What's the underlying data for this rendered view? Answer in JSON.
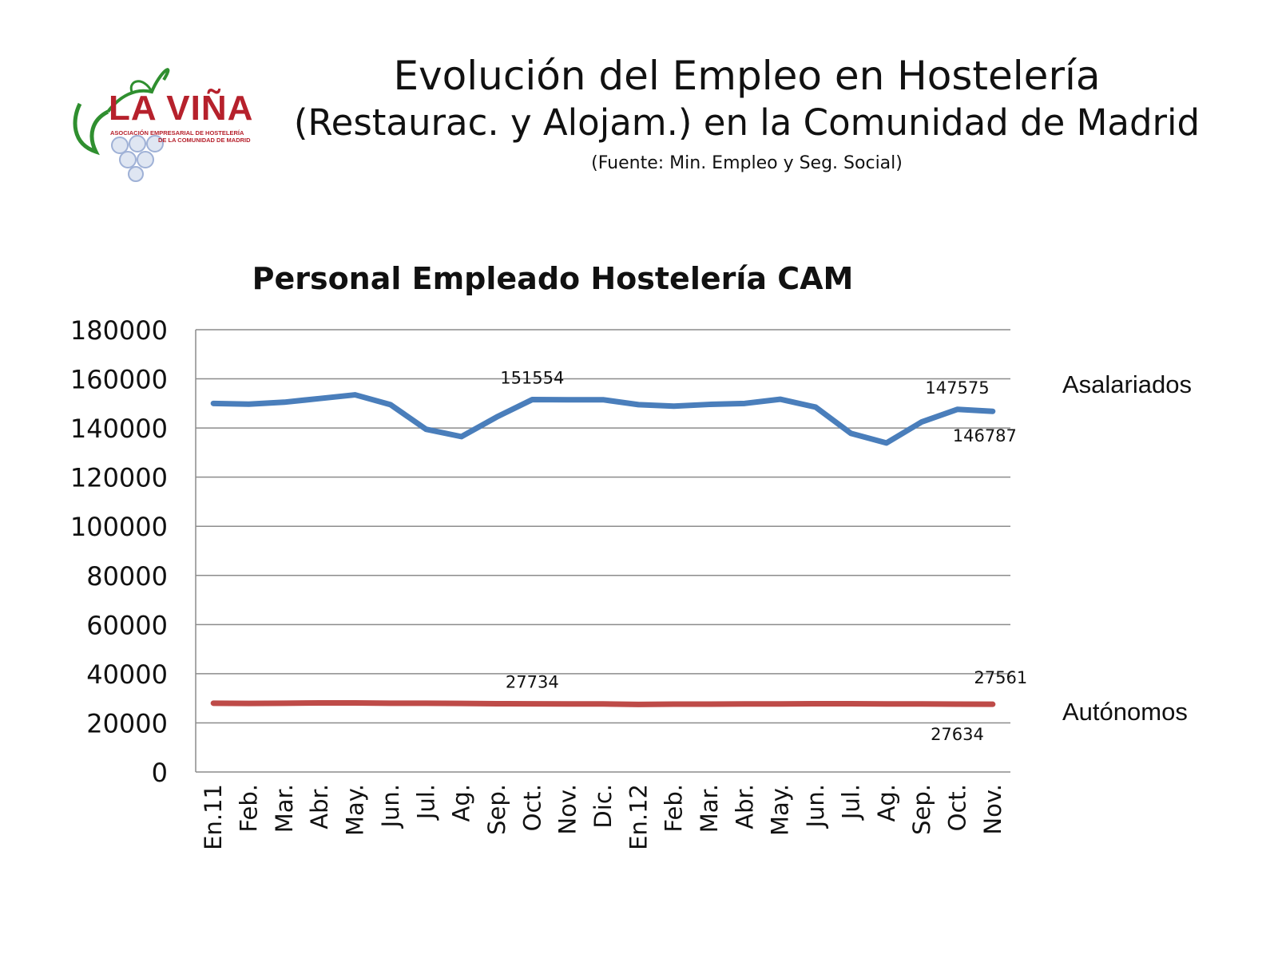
{
  "logo": {
    "name": "LA VIÑA",
    "line1": "ASOCIACIÓN EMPRESARIAL DE HOSTELERÍA",
    "line2": "DE LA COMUNIDAD DE MADRID"
  },
  "header": {
    "title": "Evolución del Empleo en Hostelería",
    "subtitle": "(Restaurac. y Alojam.) en la Comunidad de Madrid",
    "source": "(Fuente: Min. Empleo y Seg. Social)"
  },
  "colors": {
    "asalariados": "#4a7ebb",
    "autonomos": "#be4b48",
    "grid": "#8c8c8c"
  },
  "chart_data": {
    "type": "line",
    "title": "Personal Empleado Hostelería CAM",
    "xlabel": "",
    "ylabel": "",
    "ylim": [
      0,
      180000
    ],
    "yticks": [
      "0",
      "20000",
      "40000",
      "60000",
      "80000",
      "100000",
      "120000",
      "140000",
      "160000",
      "180000"
    ],
    "grid": true,
    "legend": "right",
    "categories": [
      "En.11",
      "Feb.",
      "Mar.",
      "Abr.",
      "May.",
      "Jun.",
      "Jul.",
      "Ag.",
      "Sep.",
      "Oct.",
      "Nov.",
      "Dic.",
      "En.12",
      "Feb.",
      "Mar.",
      "Abr.",
      "May.",
      "Jun.",
      "Jul.",
      "Ag.",
      "Sep.",
      "Oct.",
      "Nov."
    ],
    "series": [
      {
        "name": "Asalariados",
        "values": [
          150000,
          149700,
          150500,
          152000,
          153500,
          149500,
          139500,
          136500,
          144500,
          151554,
          151500,
          151500,
          149500,
          148900,
          149600,
          150000,
          151700,
          148500,
          137800,
          133900,
          142500,
          147575,
          146787
        ],
        "labels": [
          {
            "index": 9,
            "text": "151554"
          },
          {
            "index": 21,
            "text": "147575"
          },
          {
            "index": 22,
            "text": "146787"
          }
        ]
      },
      {
        "name": "Autónomos",
        "values": [
          28000,
          27900,
          28000,
          28100,
          28100,
          28000,
          28000,
          27900,
          27800,
          27734,
          27700,
          27700,
          27500,
          27600,
          27600,
          27700,
          27700,
          27800,
          27800,
          27700,
          27700,
          27634,
          27561
        ],
        "labels": [
          {
            "index": 9,
            "text": "27734"
          },
          {
            "index": 21,
            "text": "27634"
          },
          {
            "index": 22,
            "text": "27561"
          }
        ]
      }
    ]
  }
}
